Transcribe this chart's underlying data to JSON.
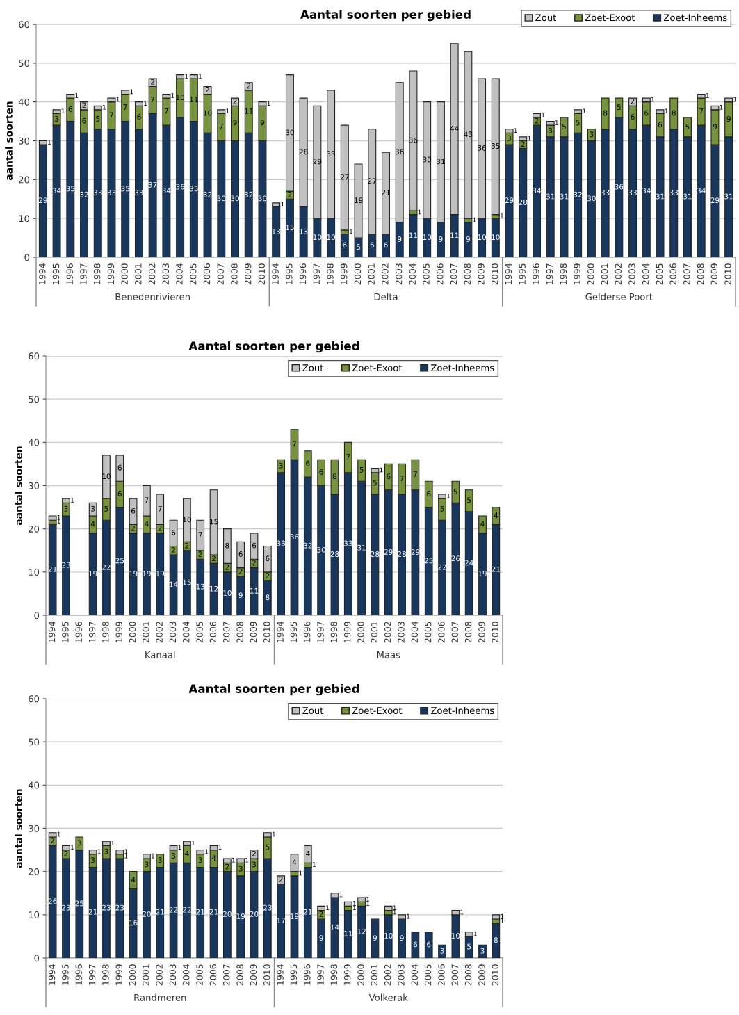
{
  "chart_data": [
    {
      "type": "bar",
      "title": "Aantal soorten per gebied",
      "ylabel": "aantal soorten",
      "stacked": true,
      "data_labels": true,
      "legend": "top right",
      "grid": "y",
      "ylim": [
        0,
        60
      ],
      "yticks": [
        0,
        10,
        20,
        30,
        40,
        50,
        60
      ],
      "annotations": [
        "Benedenrivieren",
        "Delta",
        "Gelderse Poort"
      ],
      "categories": [
        "1994",
        "1995",
        "1996",
        "1997",
        "1998",
        "1999",
        "2000",
        "2001",
        "2002",
        "2003",
        "2004",
        "2005",
        "2006",
        "2007",
        "2008",
        "2009",
        "2010",
        "1994",
        "1995",
        "1996",
        "1997",
        "1998",
        "1999",
        "2000",
        "2001",
        "2002",
        "2003",
        "2004",
        "2005",
        "2006",
        "2007",
        "2008",
        "2009",
        "2010",
        "1994",
        "1995",
        "1996",
        "1997",
        "1998",
        "1999",
        "2000",
        "2001",
        "2002",
        "2003",
        "2004",
        "2005",
        "2006",
        "2007",
        "2008",
        "2009",
        "2010"
      ],
      "series": [
        {
          "name": "Zoet-Inheems",
          "color": "#17375e",
          "values": [
            29,
            34,
            35,
            32,
            33,
            33,
            35,
            33,
            37,
            34,
            36,
            35,
            32,
            30,
            30,
            32,
            30,
            13,
            15,
            13,
            10,
            10,
            6,
            5,
            6,
            6,
            9,
            11,
            10,
            9,
            11,
            9,
            10,
            10,
            29,
            28,
            34,
            31,
            31,
            32,
            30,
            33,
            36,
            33,
            34,
            31,
            33,
            31,
            34,
            29,
            31
          ]
        },
        {
          "name": "Zoet-Exoot",
          "color": "#77933c",
          "values": [
            null,
            3,
            6,
            6,
            5,
            7,
            7,
            6,
            7,
            7,
            10,
            11,
            10,
            7,
            9,
            11,
            9,
            null,
            2,
            null,
            null,
            null,
            1,
            null,
            null,
            null,
            null,
            1,
            null,
            null,
            null,
            1,
            null,
            1,
            3,
            2,
            2,
            3,
            5,
            5,
            3,
            8,
            5,
            6,
            6,
            6,
            8,
            5,
            7,
            9,
            9
          ]
        },
        {
          "name": "Zout",
          "color": "#c0c0c0",
          "values": [
            1,
            1,
            1,
            2,
            1,
            1,
            1,
            1,
            2,
            1,
            1,
            1,
            2,
            1,
            2,
            2,
            1,
            1,
            30,
            28,
            29,
            33,
            27,
            19,
            27,
            21,
            36,
            36,
            30,
            31,
            44,
            43,
            36,
            35,
            1,
            1,
            1,
            1,
            null,
            1,
            null,
            null,
            null,
            2,
            1,
            1,
            null,
            null,
            1,
            1,
            1
          ]
        }
      ]
    },
    {
      "type": "bar",
      "title": "Aantal soorten per gebied",
      "ylabel": "aantal soorten",
      "stacked": true,
      "data_labels": true,
      "legend": "top right",
      "grid": "y",
      "ylim": [
        0,
        60
      ],
      "yticks": [
        0,
        10,
        20,
        30,
        40,
        50,
        60
      ],
      "annotations": [
        "Kanaal",
        "Maas"
      ],
      "categories": [
        "1994",
        "1995",
        "1996",
        "1997",
        "1998",
        "1999",
        "2000",
        "2001",
        "2002",
        "2003",
        "2004",
        "2005",
        "2006",
        "2007",
        "2008",
        "2009",
        "2010",
        "1994",
        "1995",
        "1996",
        "1997",
        "1998",
        "1999",
        "2000",
        "2001",
        "2002",
        "2003",
        "2004",
        "2005",
        "2006",
        "2007",
        "2008",
        "2009",
        "2010"
      ],
      "series": [
        {
          "name": "Zoet-Inheems",
          "color": "#17375e",
          "values": [
            21,
            23,
            null,
            19,
            22,
            25,
            19,
            19,
            19,
            14,
            15,
            13,
            12,
            10,
            9,
            11,
            8,
            33,
            36,
            32,
            30,
            28,
            33,
            31,
            28,
            29,
            28,
            29,
            25,
            22,
            26,
            24,
            19,
            21
          ]
        },
        {
          "name": "Zoet-Exoot",
          "color": "#77933c",
          "values": [
            1,
            3,
            null,
            4,
            5,
            6,
            2,
            4,
            2,
            2,
            2,
            2,
            2,
            2,
            2,
            2,
            2,
            3,
            7,
            6,
            6,
            8,
            7,
            5,
            5,
            6,
            7,
            7,
            6,
            5,
            5,
            5,
            4,
            4
          ]
        },
        {
          "name": "Zout",
          "color": "#c0c0c0",
          "values": [
            1,
            1,
            null,
            3,
            10,
            6,
            6,
            7,
            7,
            6,
            10,
            7,
            15,
            8,
            6,
            6,
            6,
            null,
            null,
            null,
            null,
            null,
            null,
            null,
            1,
            null,
            null,
            null,
            null,
            1,
            null,
            null,
            null,
            null
          ]
        }
      ]
    },
    {
      "type": "bar",
      "title": "Aantal soorten per gebied",
      "ylabel": "aantal soorten",
      "stacked": true,
      "data_labels": true,
      "legend": "top right",
      "grid": "y",
      "ylim": [
        0,
        60
      ],
      "yticks": [
        0,
        10,
        20,
        30,
        40,
        50,
        60
      ],
      "annotations": [
        "Randmeren",
        "Volkerak"
      ],
      "categories": [
        "1994",
        "1995",
        "1996",
        "1997",
        "1998",
        "1999",
        "2000",
        "2001",
        "2002",
        "2003",
        "2004",
        "2005",
        "2006",
        "2007",
        "2008",
        "2009",
        "2010",
        "1994",
        "1995",
        "1996",
        "1997",
        "1998",
        "1999",
        "2000",
        "2001",
        "2002",
        "2003",
        "2004",
        "2005",
        "2006",
        "2007",
        "2008",
        "2009",
        "2010"
      ],
      "series": [
        {
          "name": "Zoet-Inheems",
          "color": "#17375e",
          "values": [
            26,
            23,
            25,
            21,
            23,
            23,
            16,
            20,
            21,
            22,
            22,
            21,
            21,
            20,
            19,
            20,
            23,
            17,
            19,
            21,
            9,
            14,
            11,
            12,
            9,
            10,
            9,
            6,
            6,
            3,
            10,
            5,
            3,
            8
          ]
        },
        {
          "name": "Zoet-Exoot",
          "color": "#77933c",
          "values": [
            2,
            2,
            3,
            3,
            3,
            1,
            4,
            3,
            3,
            3,
            4,
            3,
            4,
            2,
            3,
            3,
            5,
            null,
            1,
            1,
            2,
            null,
            1,
            1,
            null,
            1,
            null,
            null,
            null,
            null,
            null,
            null,
            null,
            1
          ]
        },
        {
          "name": "Zout",
          "color": "#c0c0c0",
          "values": [
            1,
            1,
            null,
            1,
            1,
            1,
            null,
            1,
            null,
            1,
            1,
            1,
            1,
            1,
            1,
            2,
            1,
            2,
            4,
            4,
            1,
            1,
            1,
            1,
            null,
            1,
            1,
            null,
            null,
            null,
            1,
            1,
            null,
            1
          ]
        }
      ]
    }
  ]
}
